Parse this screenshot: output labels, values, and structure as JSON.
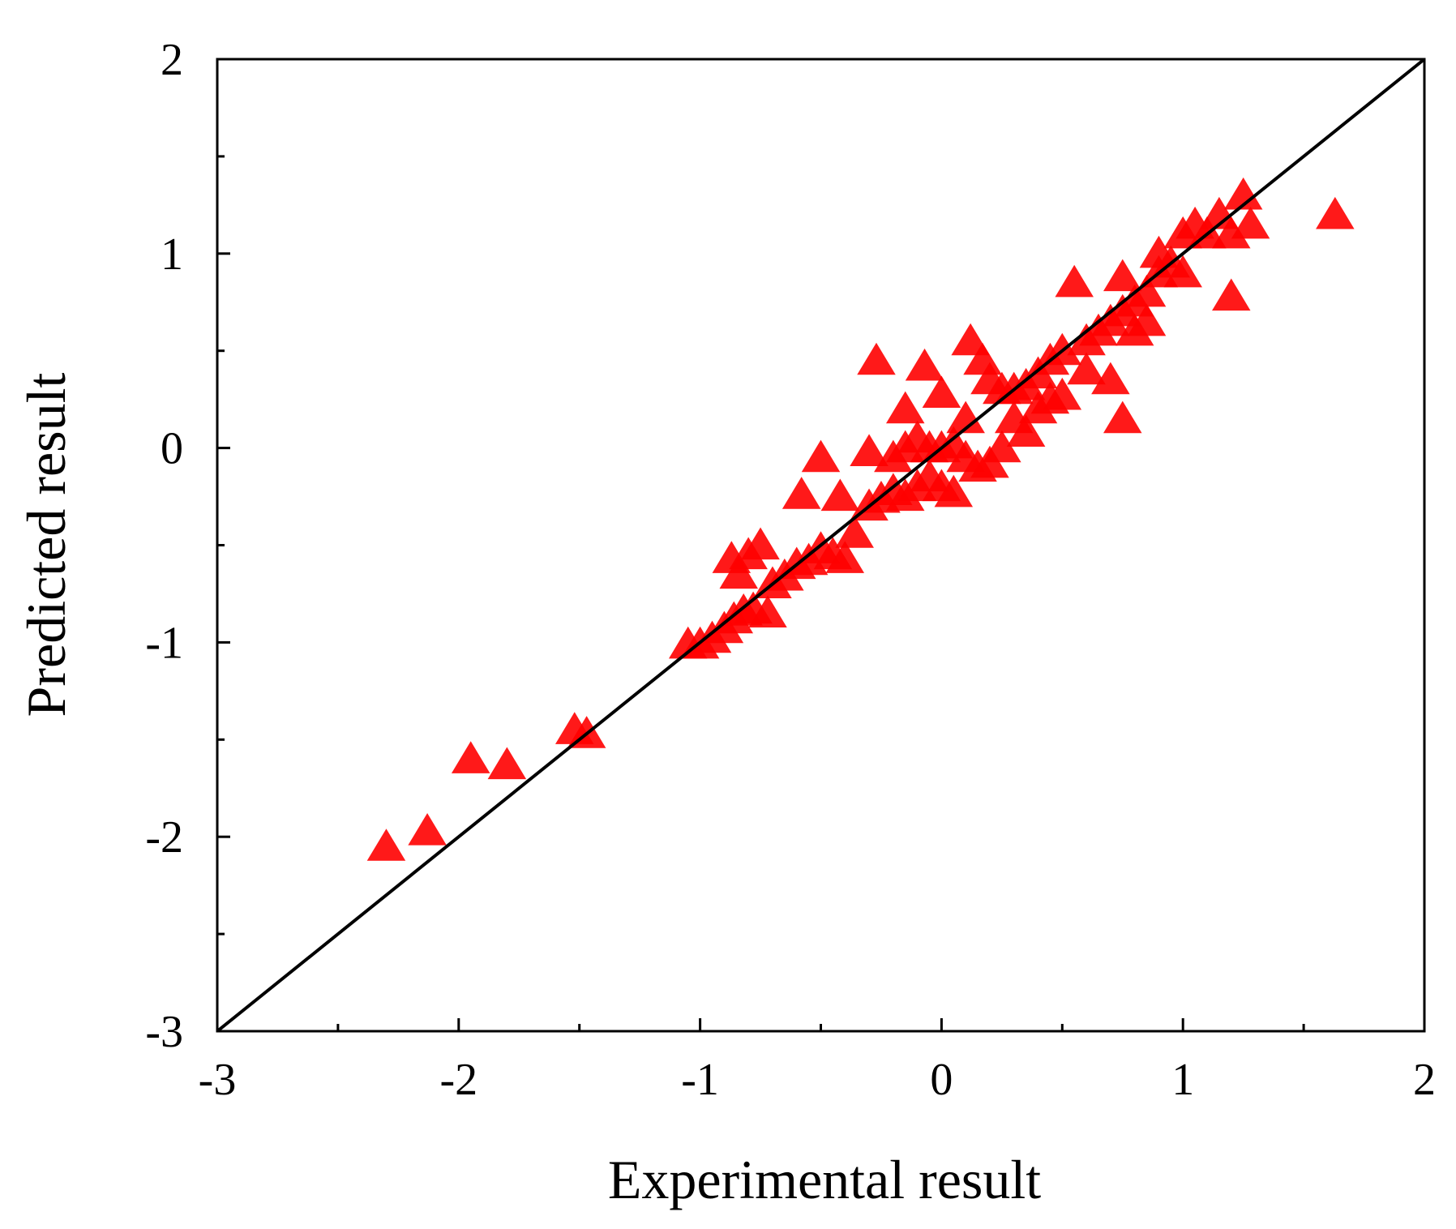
{
  "chart_data": {
    "type": "scatter",
    "xlabel": "Experimental result",
    "ylabel": "Predicted result",
    "xlim": [
      -3,
      2
    ],
    "ylim": [
      -3,
      2
    ],
    "xticks": [
      "-3",
      "-2",
      "-1",
      "0",
      "1",
      "2"
    ],
    "yticks": [
      "-3",
      "-2",
      "-1",
      "0",
      "1",
      "2"
    ],
    "grid": false,
    "marker": "triangle",
    "colors": {
      "points": "#ff0000",
      "reference_line": "#000000",
      "frame": "#000000"
    },
    "reference_line": {
      "from": [
        -3,
        -3
      ],
      "to": [
        2,
        2
      ]
    },
    "series": [
      {
        "points": [
          [
            -2.3,
            -2.05
          ],
          [
            -2.13,
            -1.97
          ],
          [
            -1.95,
            -1.6
          ],
          [
            -1.8,
            -1.63
          ],
          [
            -1.52,
            -1.45
          ],
          [
            -1.47,
            -1.47
          ],
          [
            -1.05,
            -1.01
          ],
          [
            -1.0,
            -1.01
          ],
          [
            -0.95,
            -0.98
          ],
          [
            -0.9,
            -0.93
          ],
          [
            -0.86,
            -0.88
          ],
          [
            -0.82,
            -0.84
          ],
          [
            -0.78,
            -0.83
          ],
          [
            -0.72,
            -0.85
          ],
          [
            -0.87,
            -0.57
          ],
          [
            -0.8,
            -0.55
          ],
          [
            -0.75,
            -0.5
          ],
          [
            -0.84,
            -0.65
          ],
          [
            -0.7,
            -0.7
          ],
          [
            -0.65,
            -0.66
          ],
          [
            -0.6,
            -0.6
          ],
          [
            -0.55,
            -0.58
          ],
          [
            -0.5,
            -0.52
          ],
          [
            -0.45,
            -0.55
          ],
          [
            -0.4,
            -0.57
          ],
          [
            -0.36,
            -0.44
          ],
          [
            -0.5,
            -0.05
          ],
          [
            -0.58,
            -0.24
          ],
          [
            -0.42,
            -0.25
          ],
          [
            -0.3,
            -0.3
          ],
          [
            -0.25,
            -0.26
          ],
          [
            -0.2,
            -0.22
          ],
          [
            -0.15,
            -0.25
          ],
          [
            -0.1,
            -0.2
          ],
          [
            -0.05,
            -0.15
          ],
          [
            0.0,
            -0.2
          ],
          [
            0.05,
            -0.23
          ],
          [
            -0.3,
            -0.02
          ],
          [
            -0.2,
            -0.05
          ],
          [
            -0.15,
            0.0
          ],
          [
            -0.1,
            0.05
          ],
          [
            -0.05,
            0.0
          ],
          [
            0.0,
            0.0
          ],
          [
            0.05,
            0.02
          ],
          [
            0.1,
            -0.05
          ],
          [
            0.15,
            -0.1
          ],
          [
            0.2,
            -0.08
          ],
          [
            0.25,
            0.0
          ],
          [
            -0.27,
            0.45
          ],
          [
            -0.07,
            0.42
          ],
          [
            -0.15,
            0.2
          ],
          [
            0.0,
            0.28
          ],
          [
            0.1,
            0.15
          ],
          [
            0.12,
            0.55
          ],
          [
            0.17,
            0.45
          ],
          [
            0.2,
            0.35
          ],
          [
            0.25,
            0.3
          ],
          [
            0.3,
            0.3
          ],
          [
            0.35,
            0.32
          ],
          [
            0.4,
            0.38
          ],
          [
            0.45,
            0.45
          ],
          [
            0.5,
            0.5
          ],
          [
            0.3,
            0.15
          ],
          [
            0.35,
            0.08
          ],
          [
            0.4,
            0.2
          ],
          [
            0.45,
            0.25
          ],
          [
            0.5,
            0.27
          ],
          [
            0.55,
            0.85
          ],
          [
            0.6,
            0.55
          ],
          [
            0.65,
            0.6
          ],
          [
            0.7,
            0.65
          ],
          [
            0.75,
            0.7
          ],
          [
            0.8,
            0.75
          ],
          [
            0.85,
            0.8
          ],
          [
            0.9,
            0.9
          ],
          [
            0.95,
            0.95
          ],
          [
            0.6,
            0.4
          ],
          [
            0.7,
            0.35
          ],
          [
            0.75,
            0.15
          ],
          [
            0.8,
            0.6
          ],
          [
            0.85,
            0.65
          ],
          [
            0.9,
            1.0
          ],
          [
            1.0,
            1.1
          ],
          [
            1.05,
            1.15
          ],
          [
            1.1,
            1.1
          ],
          [
            1.15,
            1.2
          ],
          [
            1.2,
            1.1
          ],
          [
            1.25,
            1.3
          ],
          [
            1.28,
            1.15
          ],
          [
            1.2,
            0.78
          ],
          [
            1.0,
            0.9
          ],
          [
            0.75,
            0.88
          ],
          [
            1.63,
            1.2
          ]
        ]
      }
    ]
  }
}
